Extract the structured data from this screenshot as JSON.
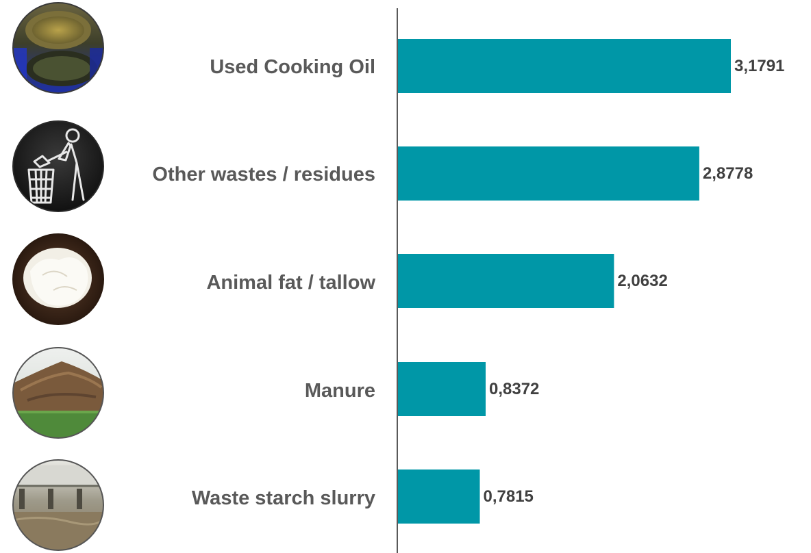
{
  "chart_data": {
    "type": "bar",
    "orientation": "horizontal",
    "categories": [
      "Used Cooking Oil",
      "Other wastes / residues",
      "Animal fat / tallow",
      "Manure",
      "Waste starch slurry"
    ],
    "values": [
      3.1791,
      2.8778,
      2.0632,
      0.8372,
      0.7815
    ],
    "value_labels": [
      "3,1791",
      "2,8778",
      "2,0632",
      "0,8372",
      "0,7815"
    ],
    "icons": [
      "used-cooking-oil-photo",
      "trash-bin-icon",
      "animal-fat-photo",
      "manure-pile-photo",
      "waste-starch-slurry-photo"
    ],
    "xlim": [
      0,
      3.45
    ],
    "grid": false,
    "legend": "none",
    "bar_color": "#0097a7",
    "axis_color": "#595959"
  }
}
